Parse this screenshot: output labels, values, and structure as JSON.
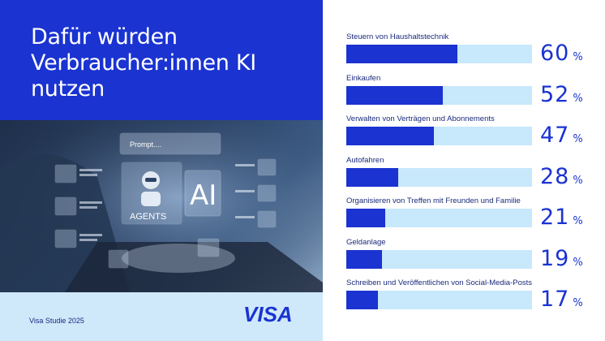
{
  "title": "Dafür würden Verbraucher:innen KI nutzen",
  "source": "Visa Studie 2025",
  "logo_text": "VISA",
  "photo": {
    "prompt_text": "Prompt....",
    "robot_label": "AGENTS",
    "chip_label": "AI"
  },
  "colors": {
    "brand_blue": "#1a33d1",
    "light_blue": "#c8e8fb",
    "text_dark": "#1a2a7a"
  },
  "chart_data": {
    "type": "bar",
    "orientation": "horizontal",
    "title": "Dafür würden Verbraucher:innen KI nutzen",
    "unit": "%",
    "xlim": [
      0,
      100
    ],
    "grid": false,
    "categories": [
      "Steuern von Haushaltstechnik",
      "Einkaufen",
      "Verwalten von Verträgen und Abonnements",
      "Autofahren",
      "Organisieren von Treffen mit Freunden und Familie",
      "Geldanlage",
      "Schreiben und Veröffentlichen von Social-Media-Posts"
    ],
    "values": [
      60,
      52,
      47,
      28,
      21,
      19,
      17
    ]
  }
}
